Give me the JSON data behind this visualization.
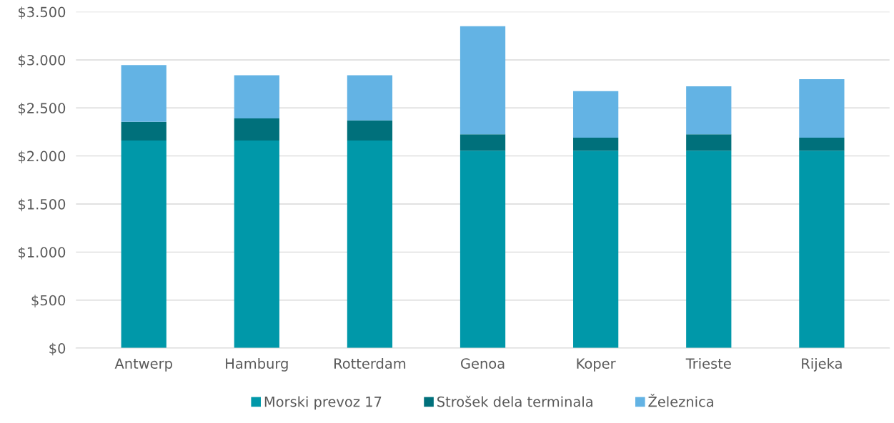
{
  "chart_data": {
    "type": "bar",
    "stacked": true,
    "categories": [
      "Antwerp",
      "Hamburg",
      "Rotterdam",
      "Genoa",
      "Koper",
      "Trieste",
      "Rijeka"
    ],
    "series": [
      {
        "name": "Morski prevoz 17",
        "color": "#0098a9",
        "values": [
          2160,
          2160,
          2160,
          2055,
          2055,
          2055,
          2055
        ]
      },
      {
        "name": "Strošek dela terminala",
        "color": "#00707b",
        "values": [
          195,
          230,
          210,
          170,
          135,
          170,
          135
        ]
      },
      {
        "name": "Železnica",
        "color": "#63b3e4",
        "values": [
          590,
          450,
          470,
          1125,
          485,
          500,
          610
        ]
      }
    ],
    "ylim": [
      0,
      3500
    ],
    "yticks": [
      {
        "value": 0,
        "label": "$0"
      },
      {
        "value": 500,
        "label": "$500"
      },
      {
        "value": 1000,
        "label": "$1.000"
      },
      {
        "value": 1500,
        "label": "$1.500"
      },
      {
        "value": 2000,
        "label": "$2.000"
      },
      {
        "value": 2500,
        "label": "$2.500"
      },
      {
        "value": 3000,
        "label": "$3.000"
      },
      {
        "value": 3500,
        "label": "$3.500"
      }
    ],
    "grid": "y",
    "legend": "bottom"
  }
}
